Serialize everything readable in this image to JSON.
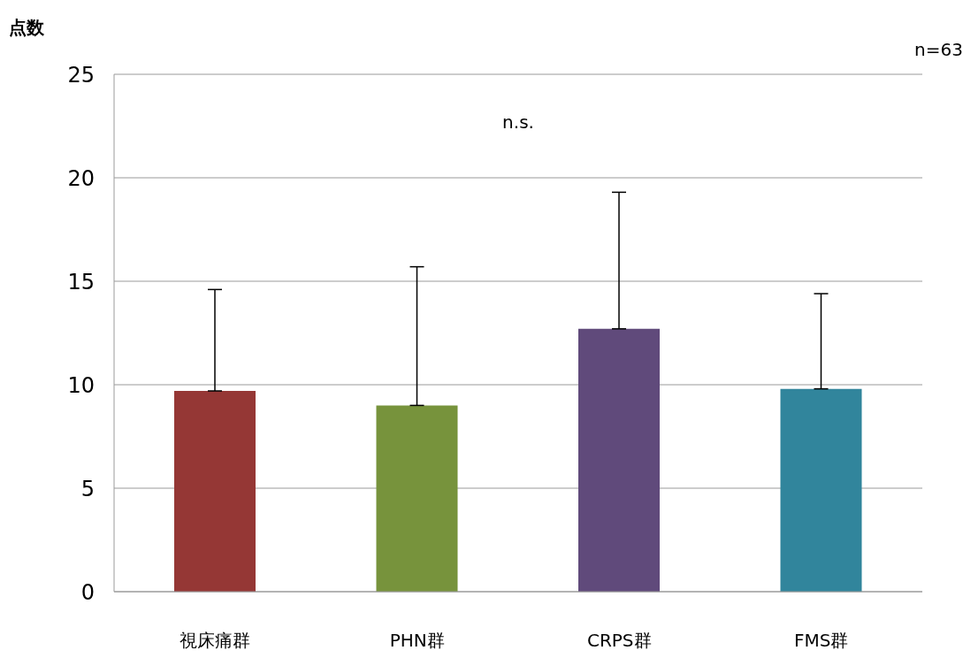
{
  "chart_data": {
    "type": "bar",
    "ylabel": "点数",
    "categories": [
      "視床痛群",
      "PHN群",
      "CRPS群",
      "FMS群"
    ],
    "values": [
      9.7,
      9.0,
      12.7,
      9.8
    ],
    "colors": [
      "#953735",
      "#77933c",
      "#604a7b",
      "#31859c"
    ],
    "errors": [
      [
        9.7,
        14.6
      ],
      [
        9.0,
        15.7
      ],
      [
        12.7,
        19.3
      ],
      [
        9.8,
        14.4
      ]
    ],
    "ylim": [
      0,
      25
    ],
    "yticks": [
      0,
      5,
      10,
      15,
      20,
      25
    ],
    "grid": "y",
    "annotations": [
      "n.s.",
      "n=63"
    ]
  }
}
